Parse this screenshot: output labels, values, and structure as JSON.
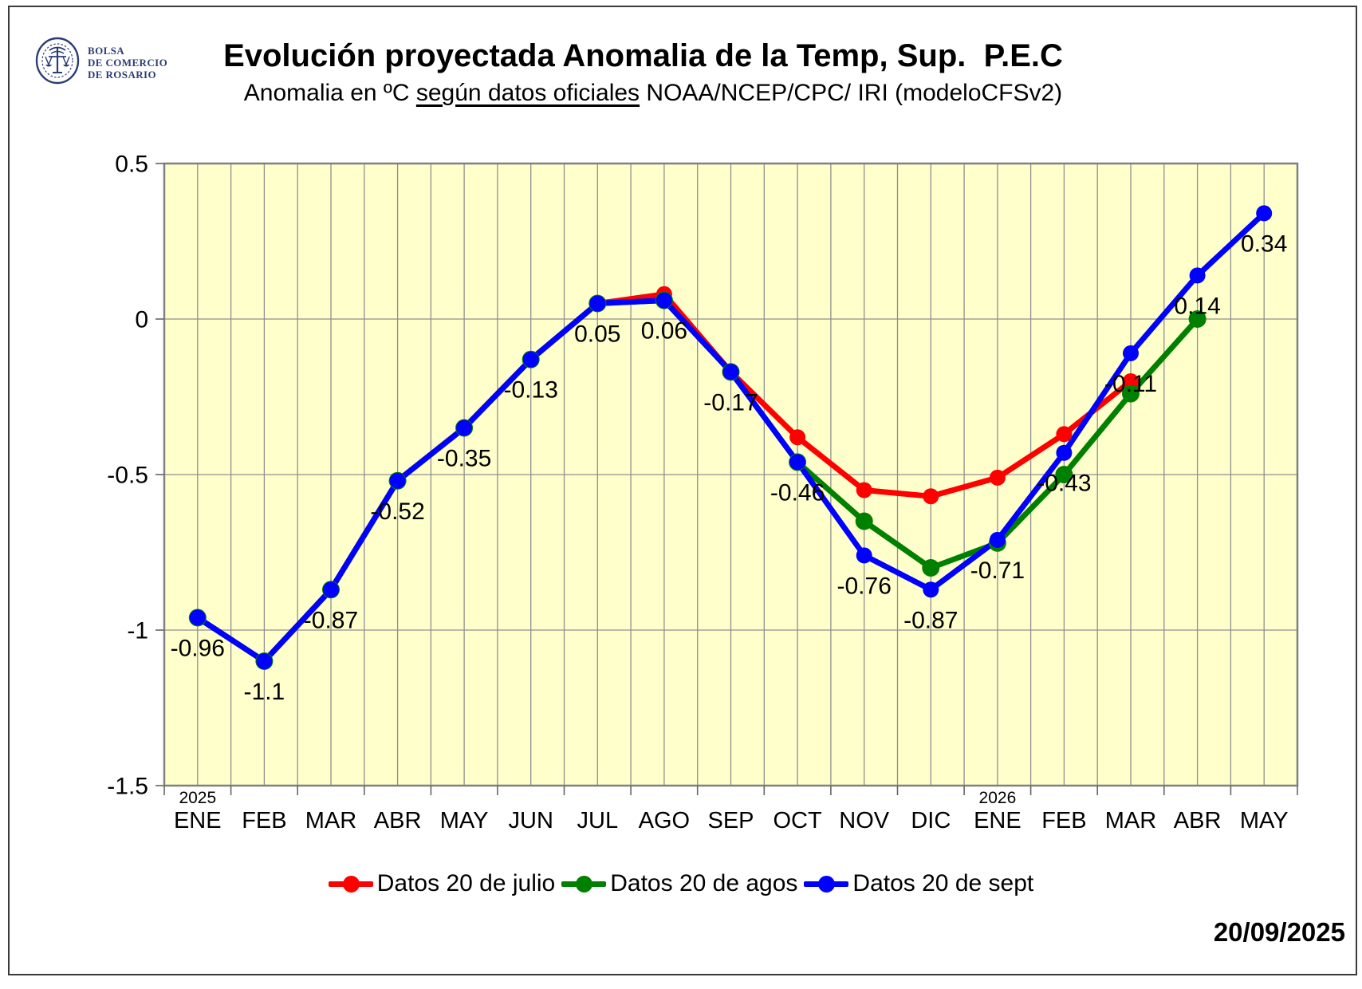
{
  "header": {
    "logo": {
      "line1": "BOLSA",
      "line2": "DE COMERCIO",
      "line3": "DE ROSARIO"
    },
    "title": "Evolución proyectada Anomalia de la Temp, Sup.  P.E.C",
    "subtitle_prefix": "Anomalia en ºC ",
    "subtitle_underlined": "según datos oficiales",
    "subtitle_suffix": " NOAA/NCEP/CPC/ IRI (modeloCFSv2)"
  },
  "footer": {
    "date": "20/09/2025"
  },
  "chart_data": {
    "type": "line",
    "title": "Evolución proyectada Anomalia de la Temp, Sup.  P.E.C",
    "subtitle": "Anomalia en ºC según datos oficiales NOAA/NCEP/CPC/ IRI (modeloCFSv2)",
    "categories": [
      "ENE",
      "FEB",
      "MAR",
      "ABR",
      "MAY",
      "JUN",
      "JUL",
      "AGO",
      "SEP",
      "OCT",
      "NOV",
      "DIC",
      "ENE",
      "FEB",
      "MAR",
      "ABR",
      "MAY"
    ],
    "year_markers": [
      {
        "index": 0,
        "label": "2025"
      },
      {
        "index": 12,
        "label": "2026"
      }
    ],
    "ylim": [
      -1.5,
      0.5
    ],
    "ytick_values": [
      0.5,
      0,
      -0.5,
      -1,
      -1.5
    ],
    "ytick_labels": [
      "0.5",
      "0",
      "-0.5",
      "-1",
      "-1.5"
    ],
    "grid": true,
    "legend_position": "bottom",
    "plot_bg": "#ffffcc",
    "grid_color": "#8f8f8f",
    "border_color": "#808080",
    "series": [
      {
        "name": "Datos 20 de julio",
        "color": "#ff0000",
        "values": [
          -0.96,
          -1.1,
          -0.87,
          -0.52,
          -0.35,
          -0.13,
          0.05,
          0.08,
          -0.17,
          -0.38,
          -0.55,
          -0.57,
          -0.51,
          -0.37,
          -0.2,
          null,
          null
        ]
      },
      {
        "name": "Datos 20 de agos",
        "color": "#008000",
        "values": [
          -0.96,
          -1.1,
          -0.87,
          -0.52,
          -0.35,
          -0.13,
          0.05,
          0.06,
          -0.17,
          -0.46,
          -0.65,
          -0.8,
          -0.72,
          -0.5,
          -0.24,
          0,
          null
        ]
      },
      {
        "name": "Datos 20 de sept",
        "color": "#0000ff",
        "values": [
          -0.96,
          -1.1,
          -0.87,
          -0.52,
          -0.35,
          -0.13,
          0.05,
          0.06,
          -0.17,
          -0.46,
          -0.76,
          -0.87,
          -0.71,
          -0.43,
          -0.11,
          0.14,
          0.34
        ],
        "point_labels": [
          "-0.96",
          "-1.1",
          "-0.87",
          "-0.52",
          "-0.35",
          "-0.13",
          "0.05",
          "0.06",
          "-0.17",
          "-0.46",
          "-0.76",
          "-0.87",
          "-0.71",
          "-0.43",
          "-0.11",
          "0.14",
          "0.34"
        ]
      }
    ]
  }
}
